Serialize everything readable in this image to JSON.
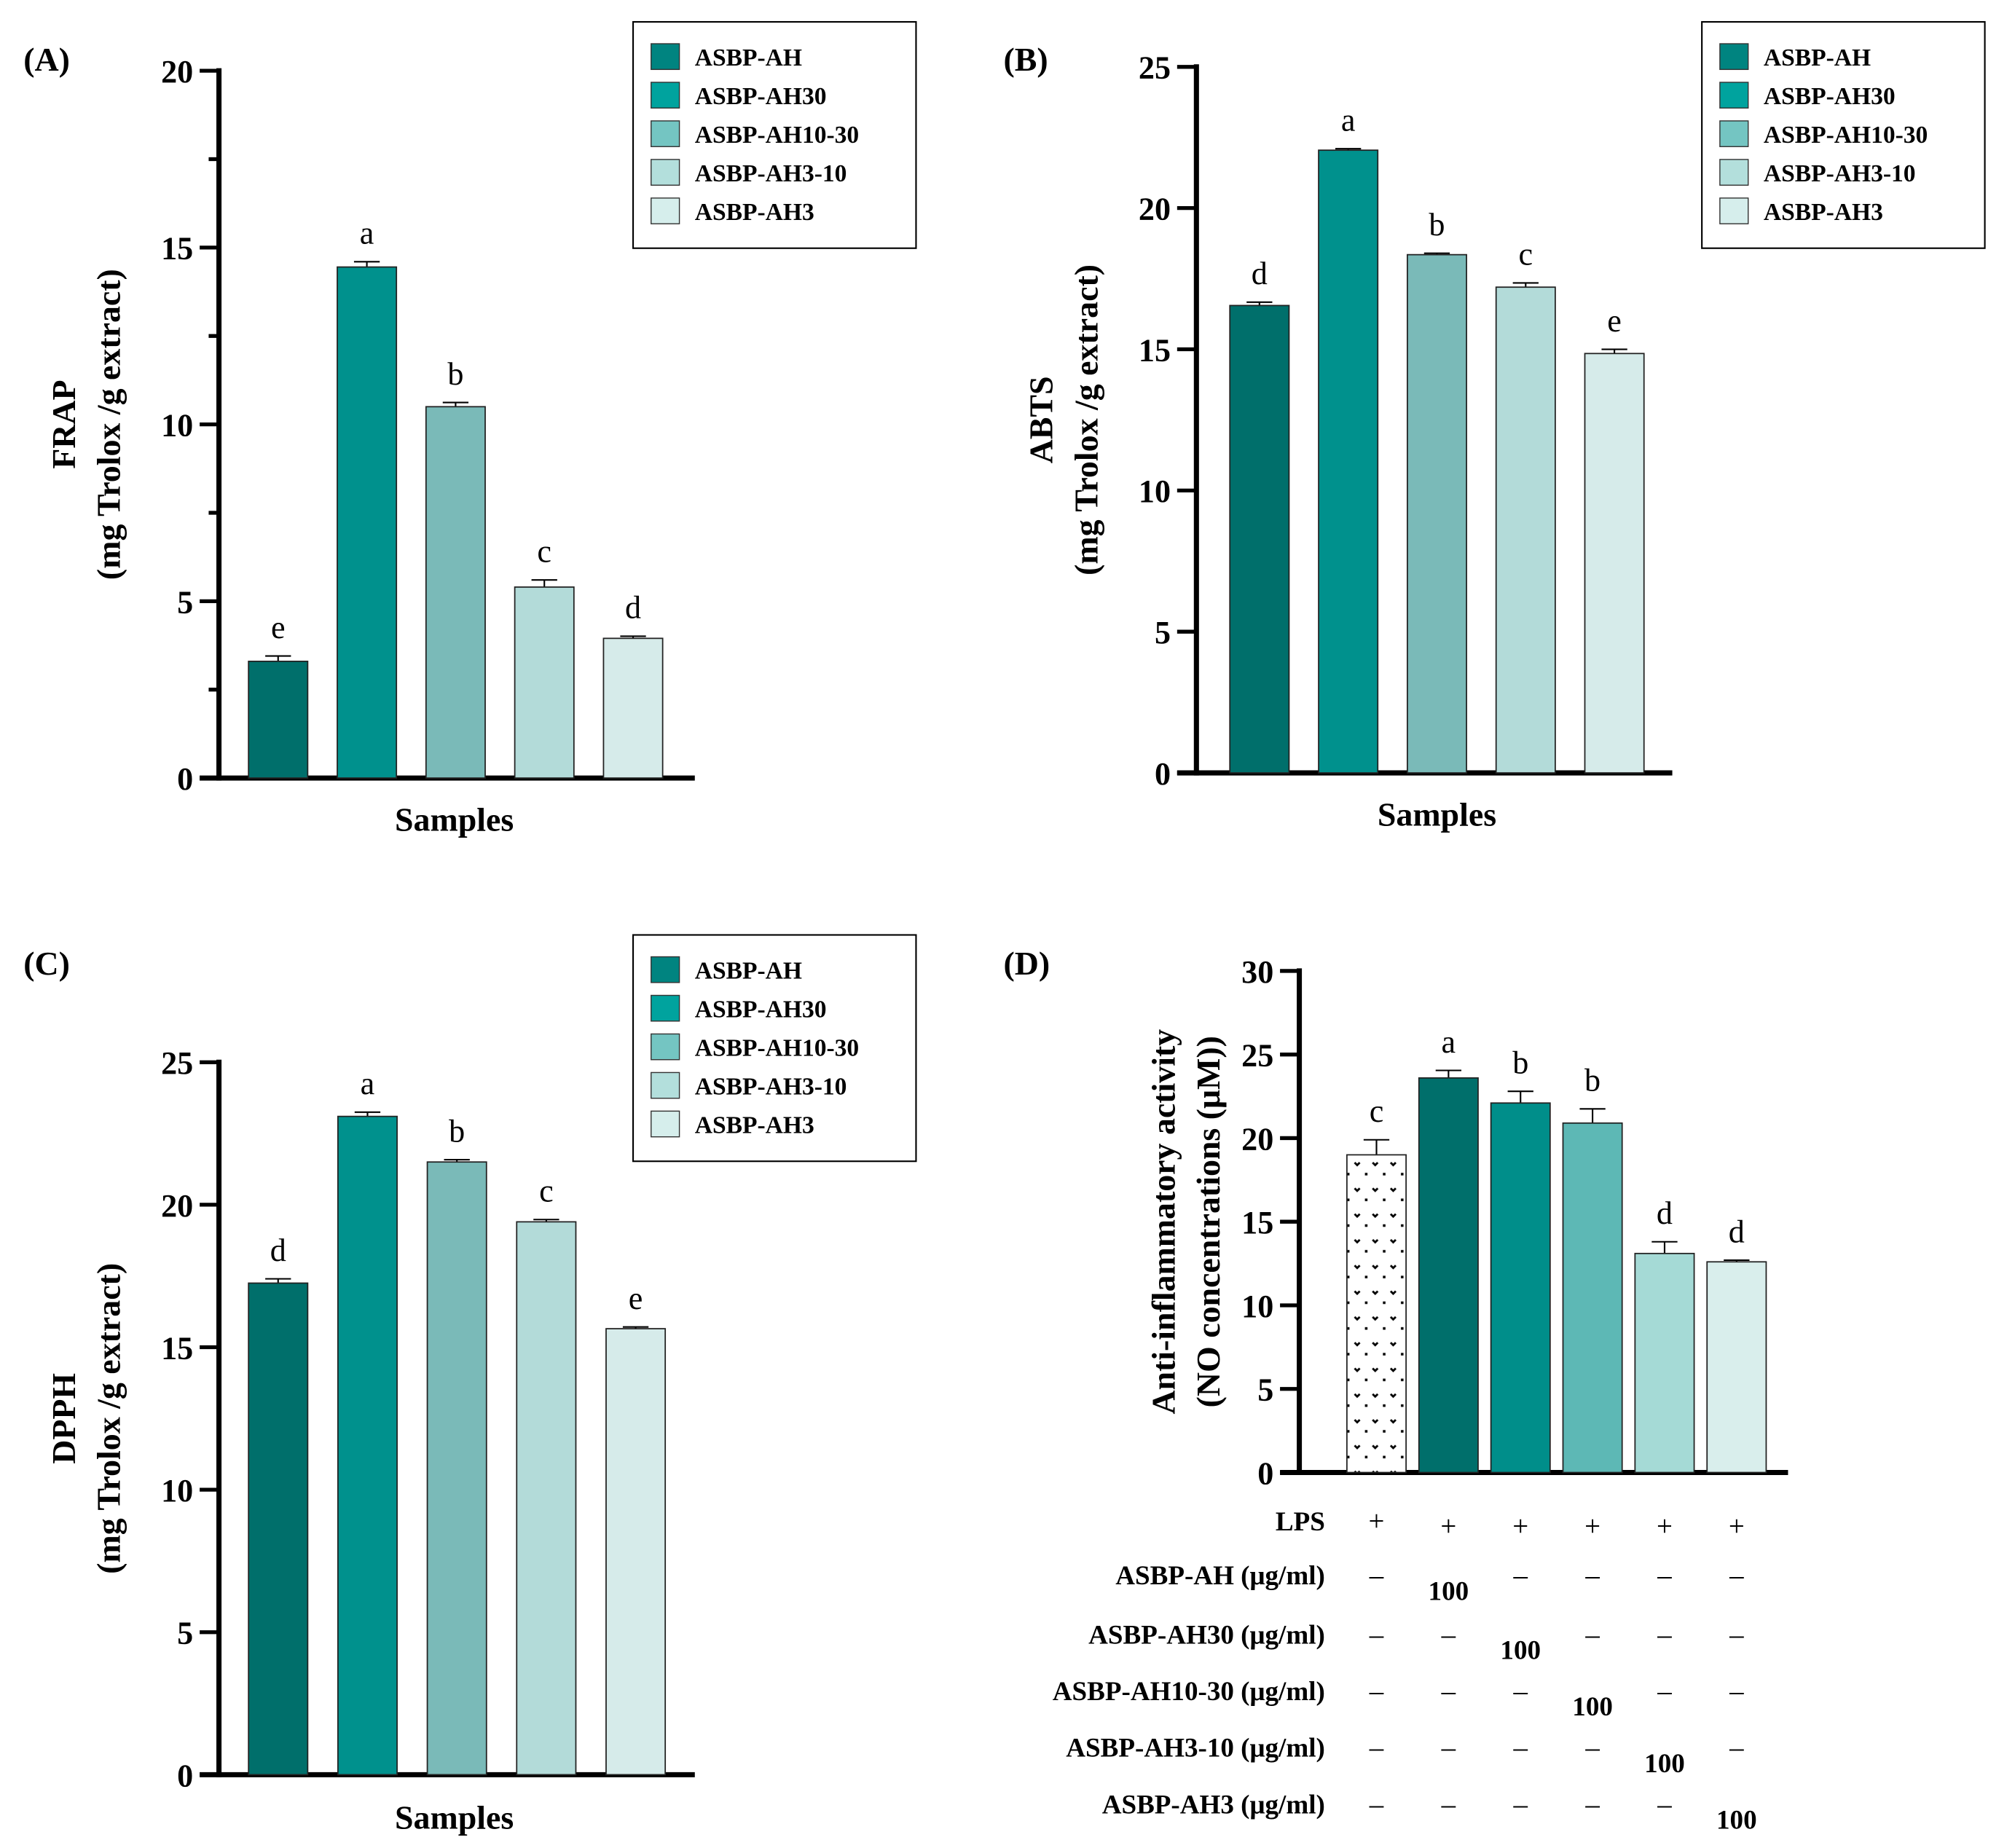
{
  "chart_data": [
    {
      "panel": "(A)",
      "type": "bar",
      "ylabel": "FRAP",
      "ylabel2": "(mg Trolox /g extract)",
      "xlabel": "Samples",
      "ylim": [
        0,
        20
      ],
      "yticks": [
        "0",
        "5",
        "10",
        "15",
        "20"
      ],
      "ystep": 5,
      "minor": 2.5,
      "categories": [
        "ASBP-AH",
        "ASBP-AH30",
        "ASBP-AH10-30",
        "ASBP-AH3-10",
        "ASBP-AH3"
      ],
      "values": [
        3.3,
        14.45,
        10.5,
        5.4,
        3.95
      ],
      "errors": [
        0.15,
        0.15,
        0.12,
        0.2,
        0.06
      ],
      "letters": [
        "e",
        "a",
        "b",
        "c",
        "d"
      ],
      "colors": [
        "#006f6b",
        "#00918d",
        "#7abab8",
        "#b3dbd9",
        "#d6ebea"
      ],
      "legend": [
        "ASBP-AH",
        "ASBP-AH30",
        "ASBP-AH10-30",
        "ASBP-AH3-10",
        "ASBP-AH3"
      ],
      "legend_colors": [
        "#008480",
        "#00a39e",
        "#74c5c2",
        "#b3dfdc",
        "#d6eeec"
      ],
      "legend_position": "top-right"
    },
    {
      "panel": "(B)",
      "type": "bar",
      "ylabel": "ABTS",
      "ylabel2": "(mg Trolox /g extract)",
      "xlabel": "Samples",
      "ylim": [
        0,
        25
      ],
      "yticks": [
        "0",
        "5",
        "10",
        "15",
        "20",
        "25"
      ],
      "ystep": 5,
      "minor": 0,
      "categories": [
        "ASBP-AH",
        "ASBP-AH30",
        "ASBP-AH10-30",
        "ASBP-AH3-10",
        "ASBP-AH3"
      ],
      "values": [
        16.55,
        22.05,
        18.35,
        17.2,
        14.85
      ],
      "errors": [
        0.12,
        0.05,
        0.05,
        0.15,
        0.15
      ],
      "letters": [
        "d",
        "a",
        "b",
        "c",
        "e"
      ],
      "colors": [
        "#006f6b",
        "#00918d",
        "#7abab8",
        "#b3dbd9",
        "#d6ebea"
      ],
      "legend": [
        "ASBP-AH",
        "ASBP-AH30",
        "ASBP-AH10-30",
        "ASBP-AH3-10",
        "ASBP-AH3"
      ],
      "legend_colors": [
        "#008480",
        "#00a39e",
        "#74c5c2",
        "#b3dfdc",
        "#d6eeec"
      ],
      "legend_position": "top-right"
    },
    {
      "panel": "(C)",
      "type": "bar",
      "ylabel": "DPPH",
      "ylabel2": "(mg Trolox /g extract)",
      "xlabel": "Samples",
      "ylim": [
        0,
        25
      ],
      "yticks": [
        "0",
        "5",
        "10",
        "15",
        "20",
        "25"
      ],
      "ystep": 5,
      "minor": 0,
      "categories": [
        "ASBP-AH",
        "ASBP-AH30",
        "ASBP-AH10-30",
        "ASBP-AH3-10",
        "ASBP-AH3"
      ],
      "values": [
        17.25,
        23.1,
        21.5,
        19.4,
        15.65
      ],
      "errors": [
        0.15,
        0.15,
        0.08,
        0.08,
        0.06
      ],
      "letters": [
        "d",
        "a",
        "b",
        "c",
        "e"
      ],
      "colors": [
        "#006f6b",
        "#00918d",
        "#7abab8",
        "#b3dbd9",
        "#d6ebea"
      ],
      "legend": [
        "ASBP-AH",
        "ASBP-AH30",
        "ASBP-AH10-30",
        "ASBP-AH3-10",
        "ASBP-AH3"
      ],
      "legend_colors": [
        "#008480",
        "#00a39e",
        "#74c5c2",
        "#b3dfdc",
        "#d6eeec"
      ],
      "legend_position": "top-right"
    },
    {
      "panel": "(D)",
      "type": "bar",
      "ylabel": "Anti-inflammatory activity",
      "ylabel2": "(NO concentrations (μM))",
      "xlabel": "",
      "ylim": [
        0,
        30
      ],
      "yticks": [
        "0",
        "5",
        "10",
        "15",
        "20",
        "25",
        "30"
      ],
      "ystep": 5,
      "minor": 0,
      "categories": [
        "LPS",
        "ASBP-AH",
        "ASBP-AH30",
        "ASBP-AH10-30",
        "ASBP-AH3-10",
        "ASBP-AH3"
      ],
      "values": [
        19.0,
        23.6,
        22.1,
        20.9,
        13.1,
        12.6
      ],
      "errors": [
        0.9,
        0.45,
        0.7,
        0.85,
        0.7,
        0.1
      ],
      "letters": [
        "c",
        "a",
        "b",
        "b",
        "d",
        "d"
      ],
      "colors": [
        "pattern",
        "#006f6b",
        "#008e8a",
        "#5db8b5",
        "#a5dad6",
        "#d9eeec"
      ],
      "table": {
        "row_labels": [
          "LPS",
          "ASBP-AH (μg/ml)",
          "ASBP-AH30 (μg/ml)",
          "ASBP-AH10-30 (μg/ml)",
          "ASBP-AH3-10 (μg/ml)",
          "ASBP-AH3 (μg/ml)"
        ],
        "rows": [
          [
            "+",
            "+",
            "+",
            "+",
            "+",
            "+"
          ],
          [
            "–",
            "100",
            "–",
            "–",
            "–",
            "–"
          ],
          [
            "–",
            "–",
            "100",
            "–",
            "–",
            "–"
          ],
          [
            "–",
            "–",
            "–",
            "100",
            "–",
            "–"
          ],
          [
            "–",
            "–",
            "–",
            "–",
            "100",
            "–"
          ],
          [
            "–",
            "–",
            "–",
            "–",
            "–",
            "100"
          ]
        ]
      }
    }
  ]
}
